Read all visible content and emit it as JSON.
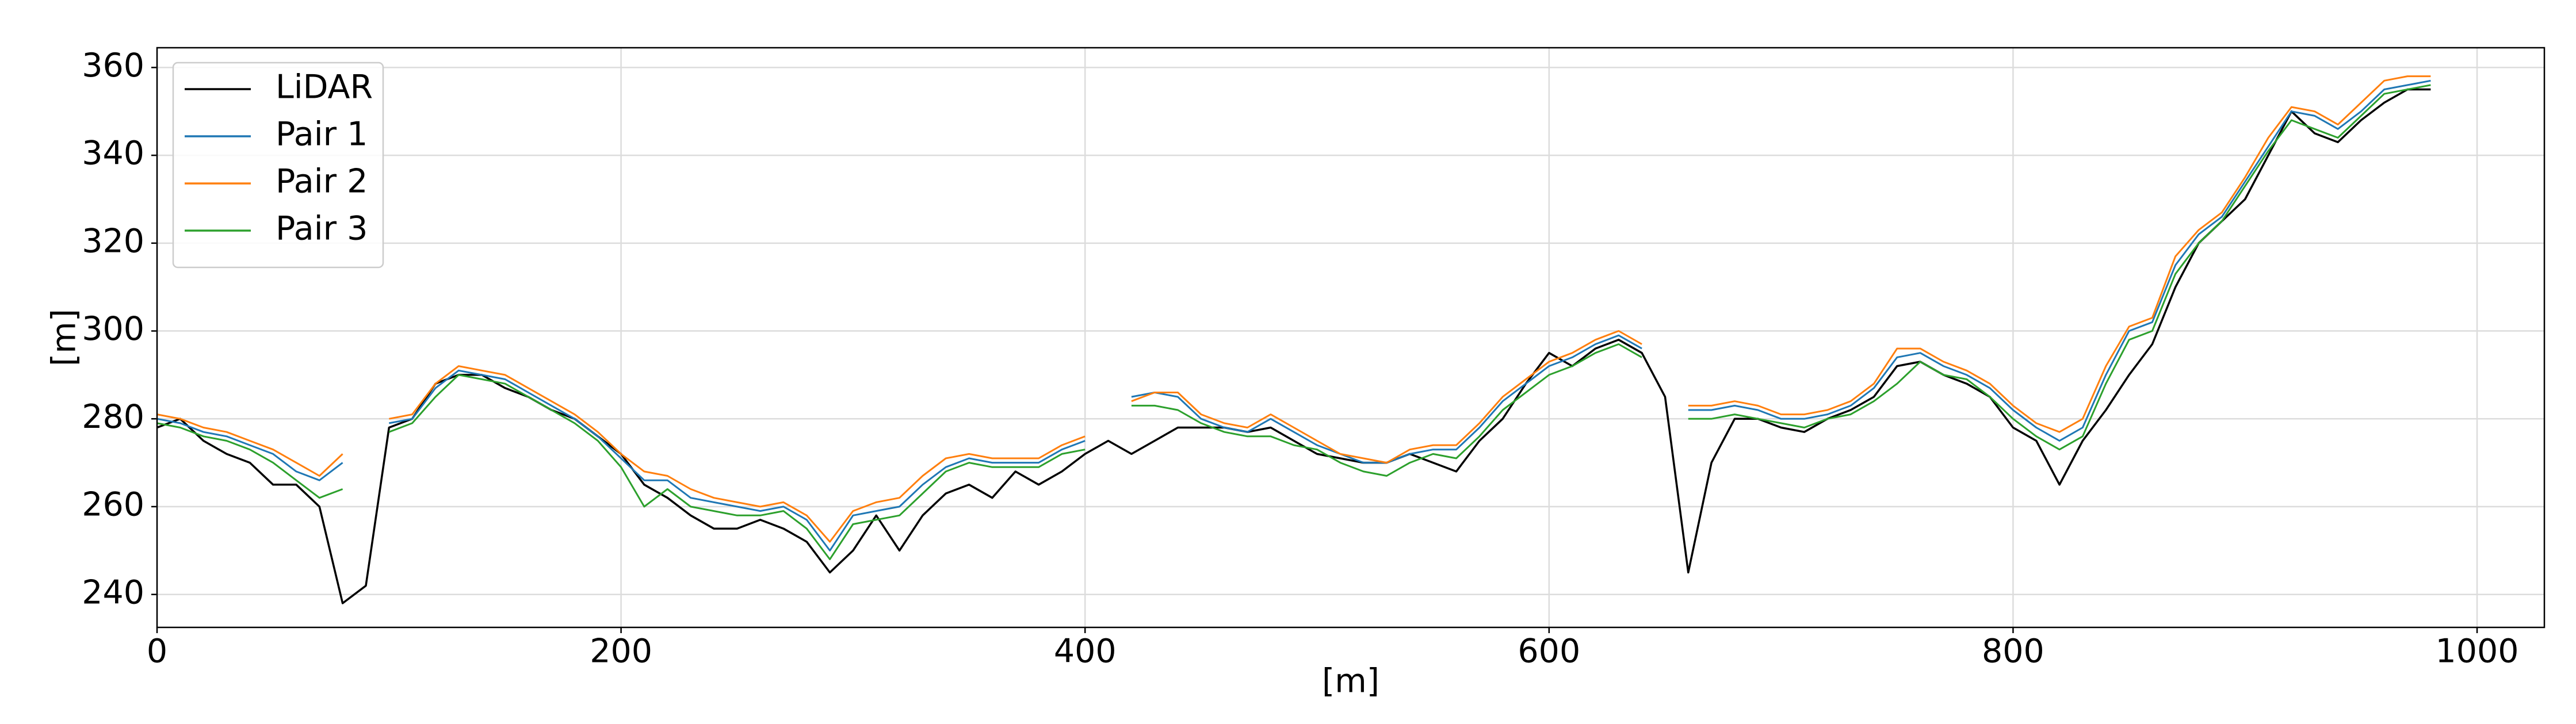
{
  "chart_data": {
    "type": "line",
    "xlabel": "[m]",
    "ylabel": "[m]",
    "xlim": [
      0,
      1029
    ],
    "ylim": [
      232.5,
      364.5
    ],
    "xticks": [
      0,
      200,
      400,
      600,
      800,
      1000
    ],
    "yticks": [
      240,
      260,
      280,
      300,
      320,
      340,
      360
    ],
    "grid": true,
    "legend": "upper left",
    "x": [
      0,
      10,
      20,
      30,
      40,
      50,
      60,
      70,
      80,
      90,
      100,
      110,
      120,
      130,
      140,
      150,
      160,
      170,
      180,
      190,
      200,
      210,
      220,
      230,
      240,
      250,
      260,
      270,
      280,
      290,
      300,
      310,
      320,
      330,
      340,
      350,
      360,
      370,
      380,
      390,
      400,
      410,
      420,
      430,
      440,
      450,
      460,
      470,
      480,
      490,
      500,
      510,
      520,
      530,
      540,
      550,
      560,
      570,
      580,
      590,
      600,
      610,
      620,
      630,
      640,
      650,
      660,
      670,
      680,
      690,
      700,
      710,
      720,
      730,
      740,
      750,
      760,
      770,
      780,
      790,
      800,
      810,
      820,
      830,
      840,
      850,
      860,
      870,
      880,
      890,
      900,
      910,
      920,
      930,
      940,
      950,
      960,
      970,
      980
    ],
    "series": [
      {
        "name": "LiDAR",
        "color": "#000000",
        "values": [
          278,
          280,
          275,
          272,
          270,
          265,
          265,
          260,
          238,
          242,
          278,
          280,
          288,
          290,
          290,
          287,
          285,
          282,
          280,
          276,
          272,
          265,
          262,
          258,
          255,
          255,
          257,
          255,
          252,
          245,
          250,
          258,
          250,
          258,
          263,
          265,
          262,
          268,
          265,
          268,
          272,
          275,
          272,
          275,
          278,
          278,
          278,
          277,
          278,
          275,
          272,
          271,
          270,
          270,
          272,
          270,
          268,
          275,
          280,
          288,
          295,
          292,
          296,
          298,
          295,
          285,
          245,
          270,
          280,
          280,
          278,
          277,
          280,
          282,
          285,
          292,
          293,
          290,
          288,
          285,
          278,
          275,
          265,
          275,
          282,
          290,
          297,
          310,
          320,
          325,
          330,
          340,
          350,
          345,
          343,
          348,
          352,
          355,
          355
        ]
      },
      {
        "name": "Pair 1",
        "color": "#1f77b4",
        "values": [
          280,
          279,
          277,
          276,
          274,
          272,
          268,
          266,
          270,
          null,
          279,
          280,
          287,
          291,
          290,
          289,
          286,
          283,
          280,
          276,
          271,
          266,
          266,
          262,
          261,
          260,
          259,
          260,
          257,
          250,
          258,
          259,
          260,
          265,
          269,
          271,
          270,
          270,
          270,
          273,
          275,
          null,
          285,
          286,
          285,
          280,
          278,
          277,
          280,
          277,
          274,
          272,
          270,
          270,
          272,
          273,
          273,
          278,
          284,
          288,
          292,
          294,
          297,
          299,
          296,
          null,
          282,
          282,
          283,
          282,
          280,
          280,
          281,
          283,
          287,
          294,
          295,
          292,
          290,
          287,
          282,
          278,
          275,
          278,
          290,
          300,
          302,
          315,
          322,
          326,
          334,
          342,
          350,
          349,
          346,
          350,
          355,
          356,
          357
        ]
      },
      {
        "name": "Pair 2",
        "color": "#ff7f0e",
        "values": [
          281,
          280,
          278,
          277,
          275,
          273,
          270,
          267,
          272,
          null,
          280,
          281,
          288,
          292,
          291,
          290,
          287,
          284,
          281,
          277,
          272,
          268,
          267,
          264,
          262,
          261,
          260,
          261,
          258,
          252,
          259,
          261,
          262,
          267,
          271,
          272,
          271,
          271,
          271,
          274,
          276,
          null,
          284,
          286,
          286,
          281,
          279,
          278,
          281,
          278,
          275,
          272,
          271,
          270,
          273,
          274,
          274,
          279,
          285,
          289,
          293,
          295,
          298,
          300,
          297,
          null,
          283,
          283,
          284,
          283,
          281,
          281,
          282,
          284,
          288,
          296,
          296,
          293,
          291,
          288,
          283,
          279,
          277,
          280,
          292,
          301,
          303,
          317,
          323,
          327,
          335,
          344,
          351,
          350,
          347,
          352,
          357,
          358,
          358
        ]
      },
      {
        "name": "Pair 3",
        "color": "#2ca02c",
        "values": [
          279,
          278,
          276,
          275,
          273,
          270,
          266,
          262,
          264,
          null,
          277,
          279,
          285,
          290,
          289,
          288,
          285,
          282,
          279,
          275,
          269,
          260,
          264,
          260,
          259,
          258,
          258,
          259,
          255,
          248,
          256,
          257,
          258,
          263,
          268,
          270,
          269,
          269,
          269,
          272,
          273,
          null,
          283,
          283,
          282,
          279,
          277,
          276,
          276,
          274,
          273,
          270,
          268,
          267,
          270,
          272,
          271,
          276,
          282,
          286,
          290,
          292,
          295,
          297,
          294,
          null,
          280,
          280,
          281,
          280,
          279,
          278,
          280,
          281,
          284,
          288,
          293,
          290,
          289,
          285,
          280,
          276,
          273,
          276,
          288,
          298,
          300,
          313,
          320,
          325,
          333,
          341,
          348,
          346,
          344,
          349,
          354,
          355,
          356
        ]
      }
    ]
  }
}
